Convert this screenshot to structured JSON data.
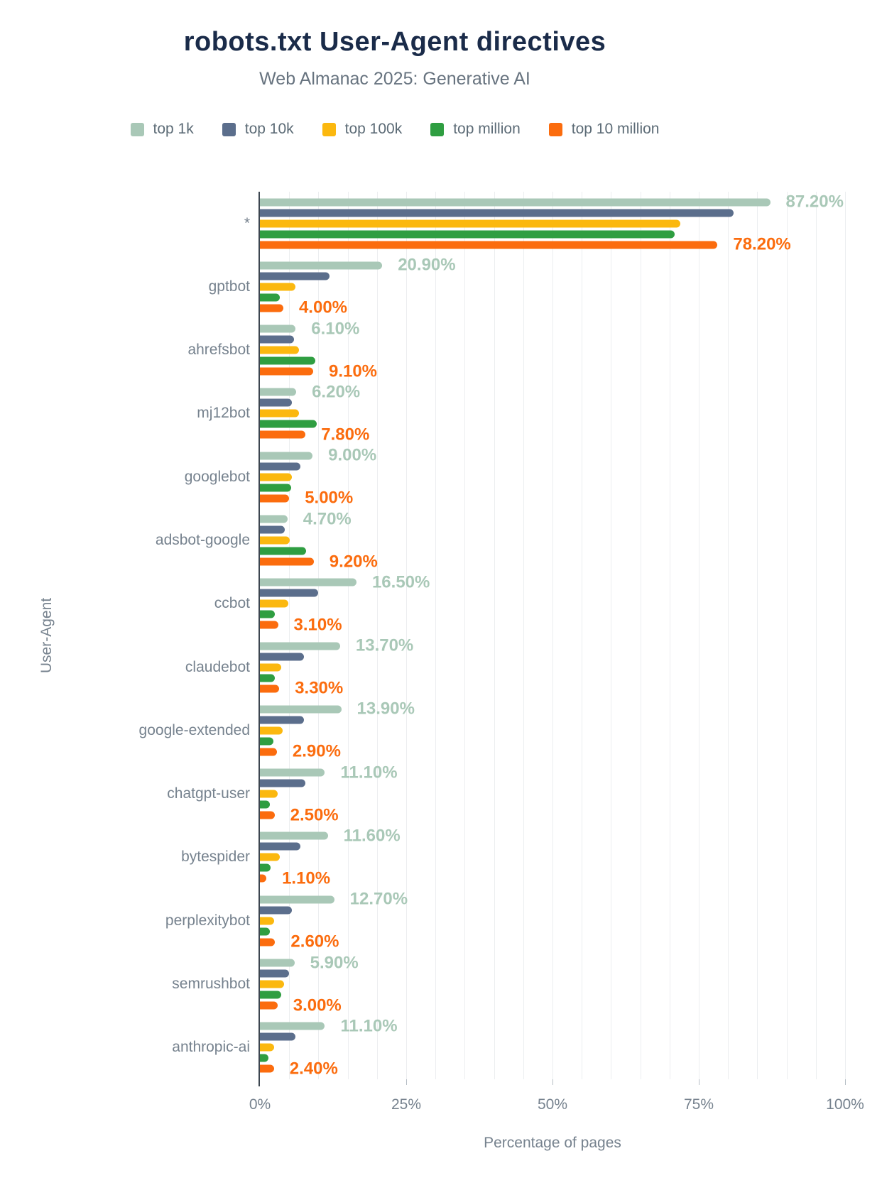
{
  "header": {
    "title": "robots.txt User-Agent directives",
    "subtitle": "Web Almanac 2025: Generative AI"
  },
  "colors": {
    "title": "#1a2b49",
    "subtitle": "#67737f",
    "axis_text": "#76828e",
    "gridline": "#eceef0",
    "axis_line": "#3c4650"
  },
  "chart_data": {
    "type": "bar",
    "orientation": "horizontal",
    "xlabel": "Percentage of pages",
    "ylabel": "User-Agent",
    "xlim": [
      0,
      100
    ],
    "grid_step": 5,
    "grid": true,
    "legend_position": "top",
    "x_ticks": [
      "0%",
      "25%",
      "50%",
      "75%",
      "100%"
    ],
    "x_tick_values": [
      0,
      25,
      50,
      75,
      100
    ],
    "categories": [
      "*",
      "gptbot",
      "ahrefsbot",
      "mj12bot",
      "googlebot",
      "adsbot-google",
      "ccbot",
      "claudebot",
      "google-extended",
      "chatgpt-user",
      "bytespider",
      "perplexitybot",
      "semrushbot",
      "anthropic-ai"
    ],
    "series": [
      {
        "name": "top 1k",
        "color": "#a9c8b7",
        "values": [
          87.2,
          20.9,
          6.1,
          6.2,
          9.0,
          4.7,
          16.5,
          13.7,
          13.9,
          11.1,
          11.6,
          12.7,
          5.9,
          11.1
        ],
        "labels": [
          "87.20%",
          "20.90%",
          "6.10%",
          "6.20%",
          "9.00%",
          "4.70%",
          "16.50%",
          "13.70%",
          "13.90%",
          "11.10%",
          "11.60%",
          "12.70%",
          "5.90%",
          "11.10%"
        ]
      },
      {
        "name": "top 10k",
        "color": "#5b6e8c",
        "values": [
          81.0,
          11.9,
          5.8,
          5.5,
          6.9,
          4.2,
          10.0,
          7.5,
          7.5,
          7.8,
          6.9,
          5.5,
          5.0,
          6.1
        ],
        "labels": null
      },
      {
        "name": "top 100k",
        "color": "#fbb80f",
        "values": [
          71.8,
          6.1,
          6.7,
          6.7,
          5.5,
          5.1,
          4.8,
          3.7,
          3.9,
          3.0,
          3.4,
          2.4,
          4.1,
          2.4
        ],
        "labels": null
      },
      {
        "name": "top million",
        "color": "#2f9e41",
        "values": [
          70.9,
          3.4,
          9.5,
          9.7,
          5.3,
          7.9,
          2.6,
          2.6,
          2.3,
          1.7,
          1.8,
          1.7,
          3.6,
          1.4
        ],
        "labels": null
      },
      {
        "name": "top 10 million",
        "color": "#fb6c0e",
        "values": [
          78.2,
          4.0,
          9.1,
          7.8,
          5.0,
          9.2,
          3.1,
          3.3,
          2.9,
          2.5,
          1.1,
          2.6,
          3.0,
          2.4
        ],
        "labels": [
          "78.20%",
          "4.00%",
          "9.10%",
          "7.80%",
          "5.00%",
          "9.20%",
          "3.10%",
          "3.30%",
          "2.90%",
          "2.50%",
          "1.10%",
          "2.60%",
          "3.00%",
          "2.40%"
        ]
      }
    ]
  }
}
